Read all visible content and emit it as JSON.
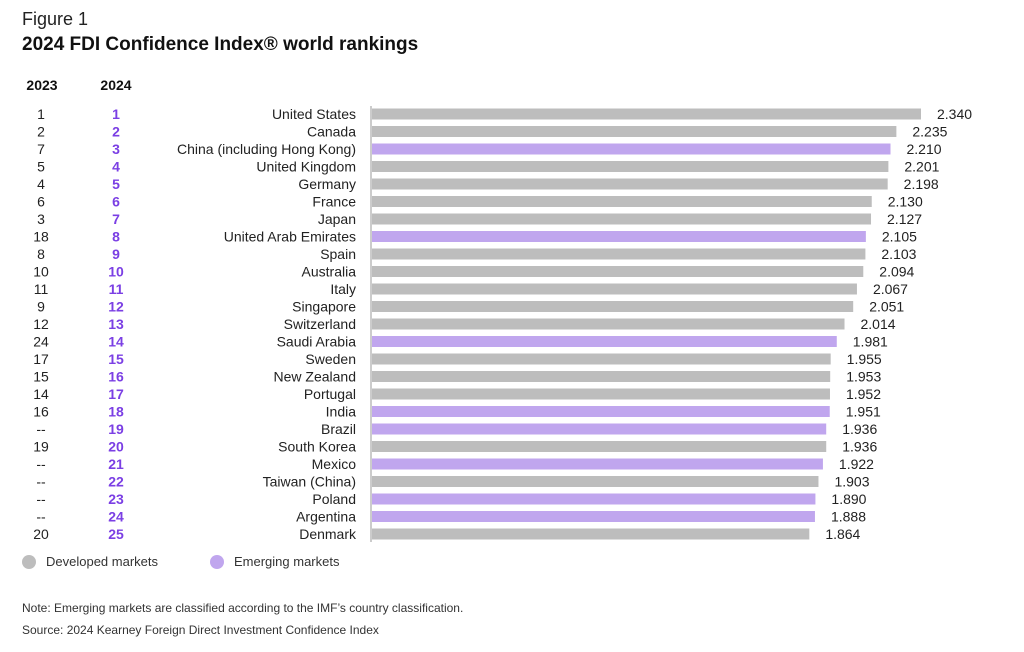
{
  "figure_label": "Figure 1",
  "title": "2024 FDI Confidence Index® world rankings",
  "column_headers": {
    "rank_2023": "2023",
    "rank_2024": "2024"
  },
  "colors": {
    "developed": "#bdbdbd",
    "emerging": "#c0a6ee",
    "rank_2024_text": "#7b3fe4",
    "axis": "#999999"
  },
  "legend": [
    {
      "label": "Developed markets",
      "color_key": "developed"
    },
    {
      "label": "Emerging markets",
      "color_key": "emerging"
    }
  ],
  "note": "Note: Emerging markets are classified according to the IMF’s country classification.",
  "source": "Source: 2024 Kearney Foreign Direct Investment Confidence Index",
  "chart_data": {
    "type": "bar",
    "orientation": "horizontal",
    "title": "2024 FDI Confidence Index® world rankings",
    "xlim": [
      0,
      2.34
    ],
    "grid": false,
    "categories": [
      "United States",
      "Canada",
      "China (including Hong Kong)",
      "United Kingdom",
      "Germany",
      "France",
      "Japan",
      "United Arab Emirates",
      "Spain",
      "Australia",
      "Italy",
      "Singapore",
      "Switzerland",
      "Saudi Arabia",
      "Sweden",
      "New Zealand",
      "Portugal",
      "India",
      "Brazil",
      "South Korea",
      "Mexico",
      "Taiwan (China)",
      "Poland",
      "Argentina",
      "Denmark"
    ],
    "values": [
      2.34,
      2.235,
      2.21,
      2.201,
      2.198,
      2.13,
      2.127,
      2.105,
      2.103,
      2.094,
      2.067,
      2.051,
      2.014,
      1.981,
      1.955,
      1.953,
      1.952,
      1.951,
      1.936,
      1.936,
      1.922,
      1.903,
      1.89,
      1.888,
      1.864
    ],
    "value_labels": [
      "2.340",
      "2.235",
      "2.210",
      "2.201",
      "2.198",
      "2.130",
      "2.127",
      "2.105",
      "2.103",
      "2.094",
      "2.067",
      "2.051",
      "2.014",
      "1.981",
      "1.955",
      "1.953",
      "1.952",
      "1.951",
      "1.936",
      "1.936",
      "1.922",
      "1.903",
      "1.890",
      "1.888",
      "1.864"
    ],
    "market_type": [
      "developed",
      "developed",
      "emerging",
      "developed",
      "developed",
      "developed",
      "developed",
      "emerging",
      "developed",
      "developed",
      "developed",
      "developed",
      "developed",
      "emerging",
      "developed",
      "developed",
      "developed",
      "emerging",
      "emerging",
      "developed",
      "emerging",
      "developed",
      "emerging",
      "emerging",
      "developed"
    ],
    "rank_2023": [
      "1",
      "2",
      "7",
      "5",
      "4",
      "6",
      "3",
      "18",
      "8",
      "10",
      "11",
      "9",
      "12",
      "24",
      "17",
      "15",
      "14",
      "16",
      "--",
      "19",
      "--",
      "--",
      "--",
      "--",
      "20"
    ],
    "rank_2024": [
      "1",
      "2",
      "3",
      "4",
      "5",
      "6",
      "7",
      "8",
      "9",
      "10",
      "11",
      "12",
      "13",
      "14",
      "15",
      "16",
      "17",
      "18",
      "19",
      "20",
      "21",
      "22",
      "23",
      "24",
      "25"
    ]
  }
}
